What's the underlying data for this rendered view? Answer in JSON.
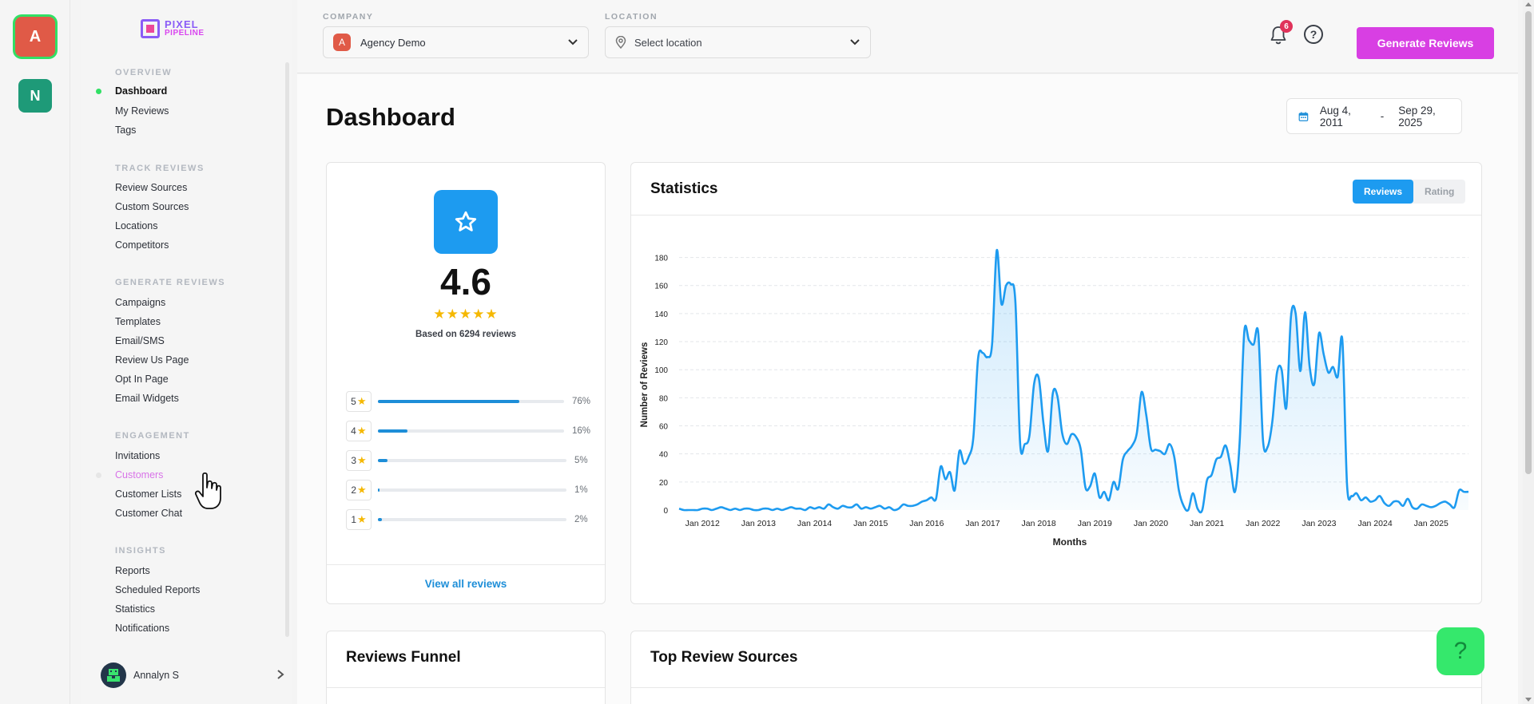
{
  "workspaces": [
    {
      "letter": "A",
      "color": "#e05a47"
    },
    {
      "letter": "N",
      "color": "#1e9a78"
    }
  ],
  "brand": {
    "line1": "PIXEL",
    "line2": "PIPELINE"
  },
  "sidebar": {
    "sections": [
      {
        "title": "OVERVIEW",
        "items": [
          "Dashboard",
          "My Reviews",
          "Tags"
        ]
      },
      {
        "title": "TRACK REVIEWS",
        "items": [
          "Review Sources",
          "Custom Sources",
          "Locations",
          "Competitors"
        ]
      },
      {
        "title": "GENERATE REVIEWS",
        "items": [
          "Campaigns",
          "Templates",
          "Email/SMS",
          "Review Us Page",
          "Opt In Page",
          "Email Widgets"
        ]
      },
      {
        "title": "ENGAGEMENT",
        "items": [
          "Invitations",
          "Customers",
          "Customer Lists",
          "Customer Chat"
        ]
      },
      {
        "title": "INSIGHTS",
        "items": [
          "Reports",
          "Scheduled Reports",
          "Statistics",
          "Notifications"
        ]
      }
    ],
    "active_item": "Dashboard",
    "hover_item": "Customers",
    "user": {
      "name": "Annalyn S",
      "avatar_icon": "pixel-avatar-icon"
    }
  },
  "topbar": {
    "company_label": "COMPANY",
    "company_value": "Agency Demo",
    "company_badge": "A",
    "location_label": "LOCATION",
    "location_placeholder": "Select location",
    "notification_count": "6",
    "help_glyph": "?",
    "generate_button": "Generate Reviews"
  },
  "page": {
    "title": "Dashboard",
    "date_from": "Aug 4, 2011",
    "date_sep": "-",
    "date_to": "Sep 29, 2025"
  },
  "rating_card": {
    "value": "4.6",
    "stars": "★★★★★",
    "basis": "Based on 6294 reviews",
    "distribution": [
      {
        "stars": "5",
        "percent": 76,
        "label": "76%"
      },
      {
        "stars": "4",
        "percent": 16,
        "label": "16%"
      },
      {
        "stars": "3",
        "percent": 5,
        "label": "5%"
      },
      {
        "stars": "2",
        "percent": 1,
        "label": "1%"
      },
      {
        "stars": "1",
        "percent": 2,
        "label": "2%"
      }
    ],
    "view_all": "View all reviews"
  },
  "statistics": {
    "title": "Statistics",
    "toggle_on": "Reviews",
    "toggle_off": "Rating"
  },
  "chart_data": {
    "type": "area",
    "title": "",
    "xlabel": "Months",
    "ylabel": "Number of Reviews",
    "ylim": [
      0,
      190
    ],
    "yticks": [
      0,
      20,
      40,
      60,
      80,
      100,
      120,
      140,
      160,
      180
    ],
    "xtick_labels": [
      "Jan 2012",
      "Jan 2013",
      "Jan 2014",
      "Jan 2015",
      "Jan 2016",
      "Jan 2017",
      "Jan 2018",
      "Jan 2019",
      "Jan 2020",
      "Jan 2021",
      "Jan 2022",
      "Jan 2023",
      "Jan 2024",
      "Jan 2025"
    ],
    "x_start": "2011-08",
    "grid": true,
    "line_color": "#1d9bf0",
    "series": [
      {
        "values": [
          1,
          0,
          0,
          0,
          0,
          1,
          1,
          0,
          1,
          2,
          1,
          0,
          1,
          0,
          1,
          1,
          0,
          0,
          1,
          1,
          0,
          1,
          0,
          1,
          2,
          1,
          1,
          0,
          2,
          1,
          2,
          1,
          4,
          2,
          1,
          3,
          2,
          2,
          4,
          1,
          2,
          1,
          2,
          3,
          1,
          2,
          0,
          1,
          4,
          3,
          3,
          4,
          6,
          7,
          9,
          8,
          31,
          22,
          27,
          14,
          42,
          33,
          38,
          52,
          108,
          112,
          109,
          118,
          185,
          147,
          160,
          161,
          148,
          48,
          47,
          53,
          90,
          94,
          62,
          42,
          83,
          81,
          55,
          47,
          54,
          52,
          43,
          16,
          17,
          26,
          9,
          13,
          7,
          20,
          15,
          36,
          42,
          46,
          55,
          84,
          68,
          44,
          43,
          42,
          40,
          47,
          38,
          14,
          3,
          0,
          12,
          1,
          0,
          21,
          25,
          36,
          38,
          46,
          32,
          13,
          48,
          127,
          121,
          118,
          126,
          50,
          45,
          63,
          98,
          100,
          73,
          138,
          140,
          99,
          141,
          102,
          90,
          126,
          111,
          98,
          102,
          95,
          121,
          18,
          10,
          12,
          7,
          9,
          6,
          7,
          10,
          5,
          3,
          6,
          6,
          3,
          8,
          2,
          1,
          4,
          3,
          2,
          3,
          5,
          6,
          4,
          2,
          14,
          13,
          13
        ]
      }
    ]
  }
}
